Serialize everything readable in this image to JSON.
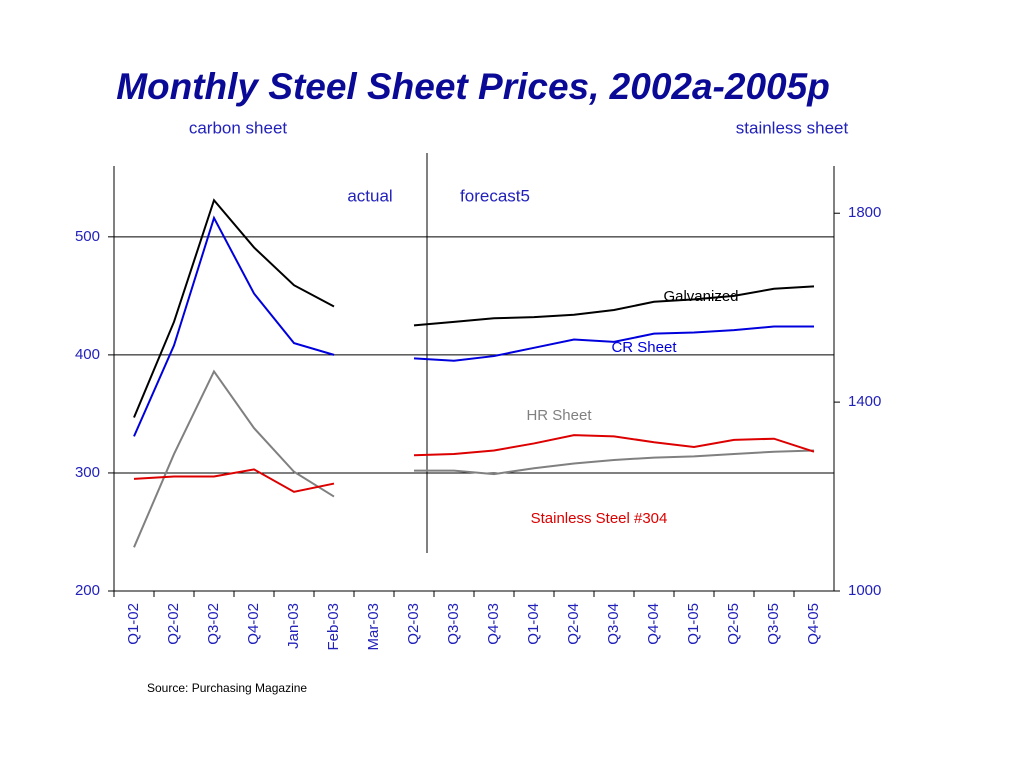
{
  "chart_data": {
    "type": "line",
    "title": "Monthly Steel Sheet Prices, 2002a-2005p",
    "y_axis_label": "carbon sheet",
    "y2_axis_label": "stainless sheet",
    "annotations": [
      "actual",
      "forecast5"
    ],
    "source": "Source: Purchasing Magazine",
    "categories": [
      "Q1-02",
      "Q2-02",
      "Q3-02",
      "Q4-02",
      "Jan-03",
      "Feb-03",
      "Mar-03",
      "Q2-03",
      "Q3-03",
      "Q4-03",
      "Q1-04",
      "Q2-04",
      "Q3-04",
      "Q4-04",
      "Q1-05",
      "Q2-05",
      "Q3-05",
      "Q4-05"
    ],
    "series": [
      {
        "name": "Galvanized",
        "color": "#000000",
        "values": [
          347,
          428,
          531,
          491,
          459,
          441,
          null,
          425,
          428,
          431,
          432,
          434,
          438,
          445,
          447,
          450,
          456,
          458
        ]
      },
      {
        "name": "CR Sheet",
        "color": "#0000dd",
        "values": [
          331,
          408,
          516,
          452,
          410,
          400,
          null,
          397,
          395,
          399,
          406,
          413,
          411,
          418,
          419,
          421,
          424,
          424
        ]
      },
      {
        "name": "HR Sheet",
        "color": "#808080",
        "values": [
          237,
          316,
          386,
          338,
          301,
          280,
          null,
          302,
          302,
          299,
          304,
          308,
          311,
          313,
          314,
          316,
          318,
          319
        ]
      },
      {
        "name": "Stainless Steel #304",
        "color": "#dd0000",
        "values": [
          295,
          297,
          297,
          303,
          284,
          291,
          null,
          315,
          316,
          319,
          325,
          332,
          331,
          326,
          322,
          328,
          329,
          318
        ]
      }
    ],
    "ylim": [
      200,
      560
    ],
    "yticks": [
      200,
      300,
      400,
      500
    ],
    "y2lim": [
      1000,
      1900
    ],
    "y2ticks": [
      1000,
      1400,
      1800
    ],
    "grid": true
  }
}
